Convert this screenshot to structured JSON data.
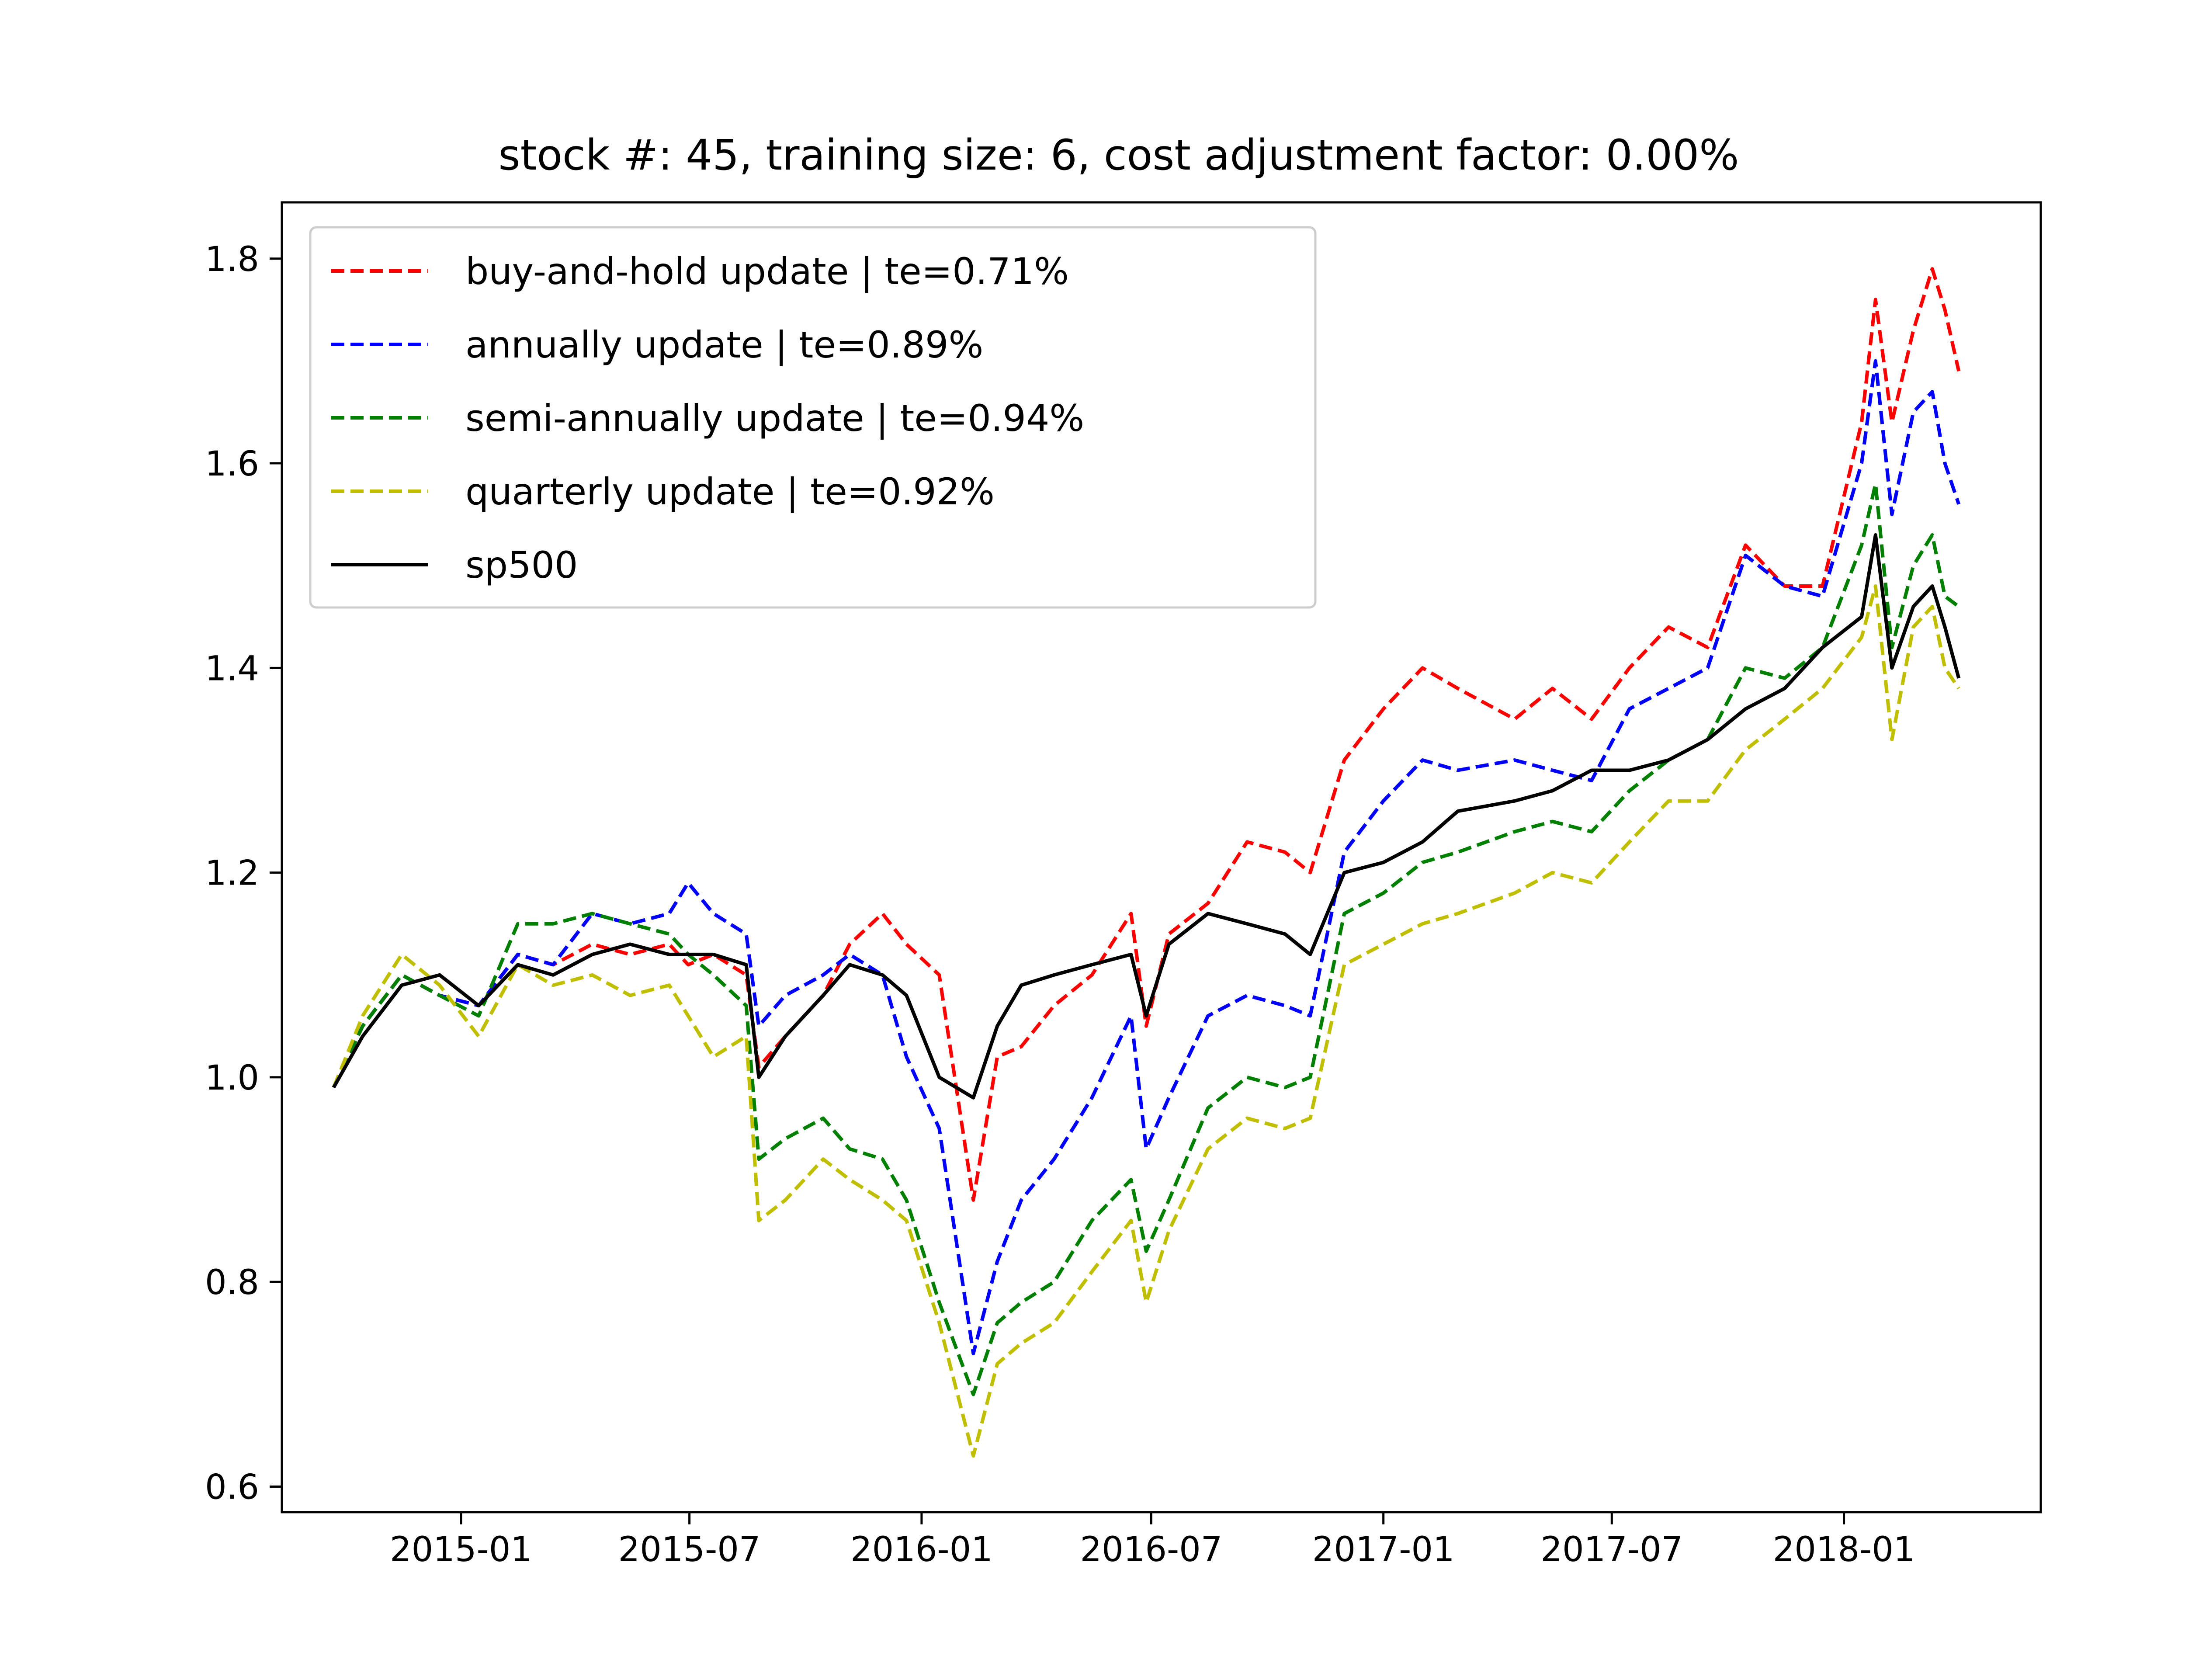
{
  "chart_data": {
    "type": "line",
    "title": "stock #: 45, training size: 6, cost adjustment factor: 0.00%",
    "xlabel": "",
    "ylabel": "",
    "x_ticks": [
      "2015-01",
      "2015-07",
      "2016-01",
      "2016-07",
      "2017-01",
      "2017-07",
      "2018-01"
    ],
    "y_ticks": [
      "0.6",
      "0.8",
      "1.0",
      "1.2",
      "1.4",
      "1.6",
      "1.8"
    ],
    "xlim": [
      "2014-08-12",
      "2018-06-06"
    ],
    "ylim": [
      0.575,
      1.855
    ],
    "grid": false,
    "legend_position": "upper-left",
    "x": [
      "2014-09-22",
      "2014-10-15",
      "2014-11-15",
      "2014-12-15",
      "2015-01-15",
      "2015-02-15",
      "2015-03-15",
      "2015-04-15",
      "2015-05-15",
      "2015-06-15",
      "2015-06-30",
      "2015-07-20",
      "2015-08-15",
      "2015-08-25",
      "2015-09-15",
      "2015-10-15",
      "2015-11-05",
      "2015-12-01",
      "2015-12-20",
      "2016-01-15",
      "2016-02-11",
      "2016-03-01",
      "2016-03-20",
      "2016-04-15",
      "2016-05-15",
      "2016-06-15",
      "2016-06-27",
      "2016-07-15",
      "2016-08-15",
      "2016-09-15",
      "2016-10-15",
      "2016-11-04",
      "2016-12-01",
      "2017-01-01",
      "2017-02-01",
      "2017-03-01",
      "2017-04-15",
      "2017-05-15",
      "2017-06-15",
      "2017-07-15",
      "2017-08-15",
      "2017-09-15",
      "2017-10-15",
      "2017-11-15",
      "2017-12-15",
      "2018-01-15",
      "2018-01-26",
      "2018-02-08",
      "2018-02-25",
      "2018-03-12",
      "2018-03-22",
      "2018-04-02"
    ],
    "series": [
      {
        "name": "buy-and-hold update | te=0.71%",
        "color": "#ff0000",
        "style": "dashed",
        "values": [
          0.99,
          1.05,
          1.1,
          1.08,
          1.07,
          1.12,
          1.11,
          1.13,
          1.12,
          1.13,
          1.11,
          1.12,
          1.1,
          1.01,
          1.04,
          1.08,
          1.13,
          1.16,
          1.13,
          1.1,
          0.88,
          1.02,
          1.03,
          1.07,
          1.1,
          1.16,
          1.05,
          1.14,
          1.17,
          1.23,
          1.22,
          1.2,
          1.31,
          1.36,
          1.4,
          1.38,
          1.35,
          1.38,
          1.35,
          1.4,
          1.44,
          1.42,
          1.52,
          1.48,
          1.48,
          1.64,
          1.76,
          1.64,
          1.73,
          1.79,
          1.75,
          1.69
        ]
      },
      {
        "name": "annually update | te=0.89%",
        "color": "#0000ff",
        "style": "dashed",
        "values": [
          0.99,
          1.05,
          1.1,
          1.08,
          1.07,
          1.12,
          1.11,
          1.16,
          1.15,
          1.16,
          1.19,
          1.16,
          1.14,
          1.05,
          1.08,
          1.1,
          1.12,
          1.1,
          1.02,
          0.95,
          0.73,
          0.82,
          0.88,
          0.92,
          0.98,
          1.06,
          0.93,
          0.98,
          1.06,
          1.08,
          1.07,
          1.06,
          1.22,
          1.27,
          1.31,
          1.3,
          1.31,
          1.3,
          1.29,
          1.36,
          1.38,
          1.4,
          1.51,
          1.48,
          1.47,
          1.6,
          1.7,
          1.55,
          1.65,
          1.67,
          1.6,
          1.56
        ]
      },
      {
        "name": "semi-annually update | te=0.94%",
        "color": "#008000",
        "style": "dashed",
        "values": [
          0.99,
          1.05,
          1.1,
          1.08,
          1.06,
          1.15,
          1.15,
          1.16,
          1.15,
          1.14,
          1.12,
          1.1,
          1.07,
          0.92,
          0.94,
          0.96,
          0.93,
          0.92,
          0.88,
          0.78,
          0.69,
          0.76,
          0.78,
          0.8,
          0.86,
          0.9,
          0.83,
          0.88,
          0.97,
          1.0,
          0.99,
          1.0,
          1.16,
          1.18,
          1.21,
          1.22,
          1.24,
          1.25,
          1.24,
          1.28,
          1.31,
          1.33,
          1.4,
          1.39,
          1.42,
          1.52,
          1.58,
          1.42,
          1.5,
          1.53,
          1.47,
          1.46
        ]
      },
      {
        "name": "quarterly update | te=0.92%",
        "color": "#bfbf00",
        "style": "dashed",
        "values": [
          0.99,
          1.06,
          1.12,
          1.09,
          1.04,
          1.11,
          1.09,
          1.1,
          1.08,
          1.09,
          1.06,
          1.02,
          1.04,
          0.86,
          0.88,
          0.92,
          0.9,
          0.88,
          0.86,
          0.76,
          0.63,
          0.72,
          0.74,
          0.76,
          0.81,
          0.86,
          0.78,
          0.85,
          0.93,
          0.96,
          0.95,
          0.96,
          1.11,
          1.13,
          1.15,
          1.16,
          1.18,
          1.2,
          1.19,
          1.23,
          1.27,
          1.27,
          1.32,
          1.35,
          1.38,
          1.43,
          1.48,
          1.33,
          1.44,
          1.46,
          1.4,
          1.38
        ]
      },
      {
        "name": "sp500",
        "color": "#000000",
        "style": "solid",
        "values": [
          0.99,
          1.04,
          1.09,
          1.1,
          1.07,
          1.11,
          1.1,
          1.12,
          1.13,
          1.12,
          1.12,
          1.12,
          1.11,
          1.0,
          1.04,
          1.08,
          1.11,
          1.1,
          1.08,
          1.0,
          0.98,
          1.05,
          1.09,
          1.1,
          1.11,
          1.12,
          1.06,
          1.13,
          1.16,
          1.15,
          1.14,
          1.12,
          1.2,
          1.21,
          1.23,
          1.26,
          1.27,
          1.28,
          1.3,
          1.3,
          1.31,
          1.33,
          1.36,
          1.38,
          1.42,
          1.45,
          1.53,
          1.4,
          1.46,
          1.48,
          1.44,
          1.39
        ]
      }
    ]
  }
}
